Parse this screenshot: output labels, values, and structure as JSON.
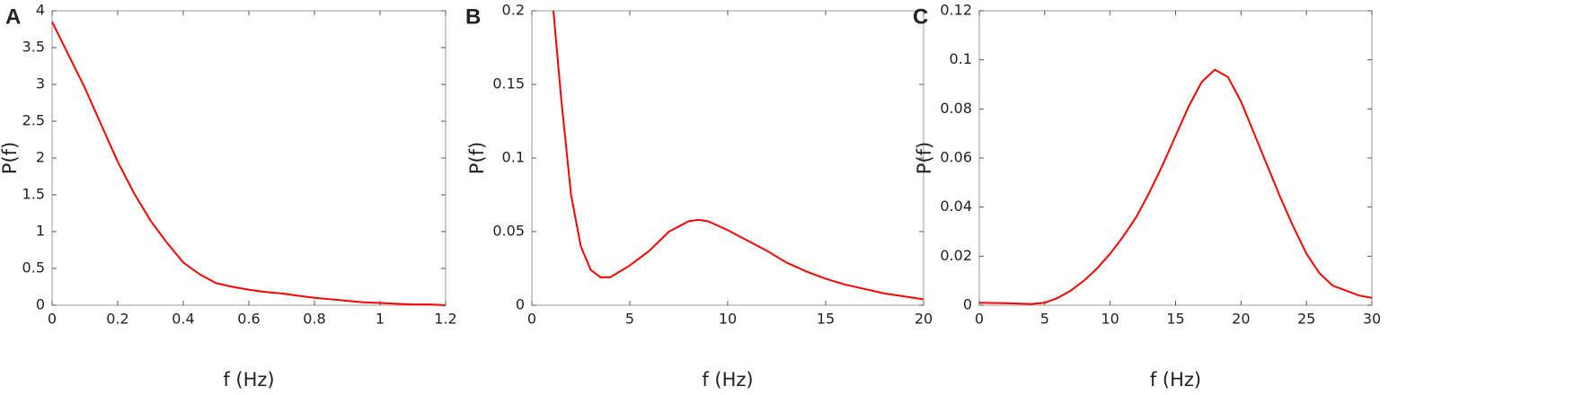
{
  "chart_data": [
    {
      "type": "line",
      "label": "A",
      "xlabel": "f (Hz)",
      "ylabel": "P(f)",
      "x": [
        0,
        0.05,
        0.1,
        0.15,
        0.2,
        0.25,
        0.3,
        0.35,
        0.4,
        0.45,
        0.5,
        0.55,
        0.6,
        0.65,
        0.7,
        0.75,
        0.8,
        0.85,
        0.9,
        0.95,
        1.0,
        1.05,
        1.1,
        1.15,
        1.2
      ],
      "series": [
        {
          "color": "#ff0000",
          "values": [
            3.85,
            3.4,
            2.95,
            2.45,
            1.95,
            1.52,
            1.15,
            0.85,
            0.58,
            0.42,
            0.3,
            0.25,
            0.21,
            0.18,
            0.16,
            0.13,
            0.1,
            0.08,
            0.06,
            0.04,
            0.03,
            0.02,
            0.01,
            0.01,
            0.0
          ]
        }
      ],
      "xlim": [
        0,
        1.2
      ],
      "xticks": [
        0,
        0.2,
        0.4,
        0.6,
        0.8,
        1,
        1.2
      ],
      "ylim": [
        0,
        4
      ],
      "yticks": [
        0,
        0.5,
        1,
        1.5,
        2,
        2.5,
        3,
        3.5,
        4
      ]
    },
    {
      "type": "line",
      "label": "B",
      "xlabel": "f (Hz)",
      "ylabel": "P(f)",
      "x": [
        1.1,
        1.5,
        2,
        2.5,
        3,
        3.5,
        4,
        5,
        6,
        7,
        8,
        8.5,
        9,
        10,
        11,
        12,
        13,
        14,
        15,
        16,
        17,
        18,
        19,
        20
      ],
      "series": [
        {
          "color": "#ff0000",
          "values": [
            0.2,
            0.14,
            0.075,
            0.04,
            0.024,
            0.019,
            0.019,
            0.027,
            0.037,
            0.05,
            0.057,
            0.058,
            0.057,
            0.051,
            0.044,
            0.037,
            0.029,
            0.023,
            0.018,
            0.014,
            0.011,
            0.008,
            0.006,
            0.004
          ]
        }
      ],
      "xlim": [
        0,
        20
      ],
      "xticks": [
        0,
        5,
        10,
        15,
        20
      ],
      "ylim": [
        0,
        0.2
      ],
      "yticks": [
        0,
        0.05,
        0.1,
        0.15,
        0.2
      ]
    },
    {
      "type": "line",
      "label": "C",
      "xlabel": "f (Hz)",
      "ylabel": "P(f)",
      "x": [
        0,
        2,
        4,
        5,
        6,
        7,
        8,
        9,
        10,
        11,
        12,
        13,
        14,
        15,
        16,
        17,
        18,
        19,
        20,
        21,
        22,
        23,
        24,
        25,
        26,
        27,
        28,
        29,
        30
      ],
      "series": [
        {
          "color": "#ff0000",
          "values": [
            0.001,
            0.0008,
            0.0005,
            0.001,
            0.003,
            0.006,
            0.01,
            0.015,
            0.021,
            0.028,
            0.036,
            0.046,
            0.057,
            0.069,
            0.081,
            0.091,
            0.096,
            0.093,
            0.083,
            0.07,
            0.057,
            0.044,
            0.032,
            0.021,
            0.013,
            0.008,
            0.006,
            0.004,
            0.003
          ]
        }
      ],
      "xlim": [
        0,
        30
      ],
      "xticks": [
        0,
        5,
        10,
        15,
        20,
        25,
        30
      ],
      "ylim": [
        0,
        0.12
      ],
      "yticks": [
        0,
        0.02,
        0.04,
        0.06,
        0.08,
        0.1,
        0.12
      ]
    }
  ]
}
